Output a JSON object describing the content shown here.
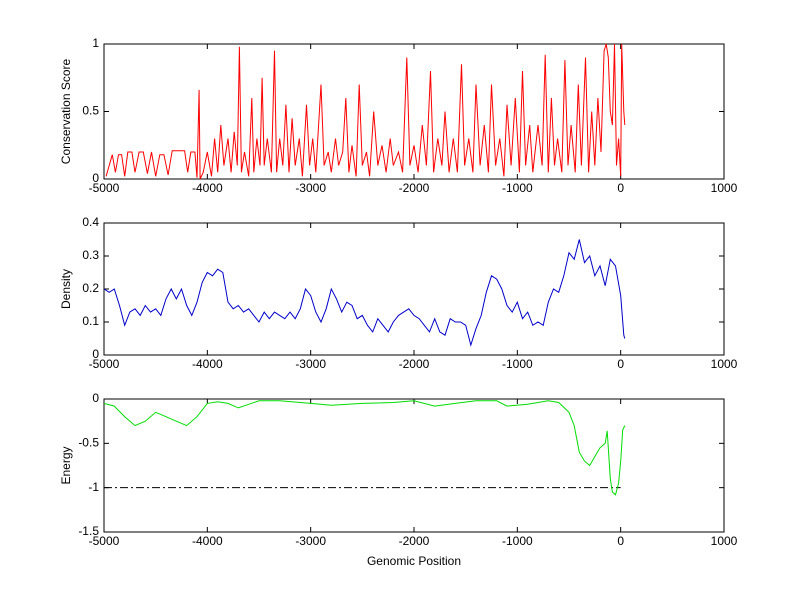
{
  "chart_data": [
    {
      "type": "line",
      "ylabel": "Conservation Score",
      "color": "#ff0000",
      "xlim": [
        -5000,
        1000
      ],
      "xticks": [
        -5000,
        -4000,
        -3000,
        -2000,
        -1000,
        0,
        1000
      ],
      "ylim": [
        0,
        1
      ],
      "yticks": [
        0,
        0.5,
        1
      ],
      "x": [
        -4980,
        -4950,
        -4920,
        -4890,
        -4860,
        -4830,
        -4800,
        -4770,
        -4730,
        -4700,
        -4660,
        -4620,
        -4580,
        -4540,
        -4500,
        -4460,
        -4420,
        -4380,
        -4340,
        -4300,
        -4260,
        -4220,
        -4190,
        -4160,
        -4120,
        -4100,
        -4080,
        -4070,
        -4040,
        -4000,
        -3960,
        -3930,
        -3900,
        -3870,
        -3840,
        -3800,
        -3770,
        -3740,
        -3710,
        -3690,
        -3670,
        -3640,
        -3600,
        -3570,
        -3550,
        -3520,
        -3490,
        -3470,
        -3450,
        -3420,
        -3380,
        -3350,
        -3330,
        -3300,
        -3270,
        -3240,
        -3210,
        -3180,
        -3150,
        -3110,
        -3080,
        -3040,
        -3010,
        -2980,
        -2950,
        -2900,
        -2870,
        -2830,
        -2800,
        -2760,
        -2730,
        -2690,
        -2660,
        -2630,
        -2600,
        -2560,
        -2530,
        -2500,
        -2460,
        -2430,
        -2390,
        -2350,
        -2310,
        -2270,
        -2230,
        -2200,
        -2150,
        -2110,
        -2070,
        -2040,
        -2000,
        -1960,
        -1920,
        -1880,
        -1840,
        -1810,
        -1770,
        -1730,
        -1700,
        -1660,
        -1620,
        -1580,
        -1540,
        -1510,
        -1470,
        -1430,
        -1400,
        -1360,
        -1320,
        -1280,
        -1250,
        -1210,
        -1170,
        -1130,
        -1100,
        -1060,
        -1020,
        -980,
        -950,
        -920,
        -880,
        -850,
        -800,
        -760,
        -730,
        -700,
        -670,
        -640,
        -610,
        -570,
        -540,
        -510,
        -480,
        -440,
        -410,
        -380,
        -340,
        -310,
        -280,
        -250,
        -220,
        -190,
        -160,
        -140,
        -120,
        -100,
        -80,
        -60,
        -40,
        -20,
        0,
        10,
        30,
        40
      ],
      "values": [
        0.02,
        0.1,
        0.18,
        0.05,
        0.18,
        0.18,
        0.02,
        0.2,
        0.2,
        0.05,
        0.2,
        0.2,
        0.04,
        0.2,
        0.02,
        0.18,
        0.18,
        0.03,
        0.21,
        0.21,
        0.21,
        0.21,
        0.05,
        0.2,
        0.2,
        0.01,
        0.66,
        0,
        0.05,
        0.2,
        0.02,
        0.3,
        0.05,
        0.4,
        0.1,
        0.3,
        0.05,
        0.35,
        0.1,
        0.98,
        0.05,
        0.2,
        0.02,
        0.6,
        0.05,
        0.3,
        0.1,
        0.75,
        0.1,
        0.3,
        0.05,
        0.95,
        0.05,
        0.3,
        0.1,
        0.55,
        0.05,
        0.45,
        0.1,
        0.3,
        0.02,
        0.55,
        0.1,
        0.3,
        0.05,
        0.7,
        0.1,
        0.2,
        0.05,
        0.3,
        0.1,
        0.2,
        0.6,
        0.05,
        0.25,
        0.02,
        0.7,
        0.1,
        0.2,
        0.02,
        0.5,
        0.1,
        0.25,
        0.05,
        0.3,
        0.1,
        0.2,
        0.05,
        0.9,
        0.1,
        0.25,
        0.05,
        0.4,
        0.1,
        0.8,
        0.05,
        0.3,
        0.1,
        0.5,
        0.05,
        0.3,
        0.05,
        0.85,
        0.1,
        0.3,
        0.05,
        0.7,
        0.1,
        0.4,
        0.05,
        0.7,
        0.1,
        0.3,
        0.02,
        0.55,
        0.1,
        0.6,
        0.05,
        0.8,
        0.1,
        0.4,
        0.05,
        0.4,
        0.1,
        0.92,
        0.05,
        0.6,
        0.1,
        0.3,
        0.05,
        0.88,
        0.1,
        0.4,
        0.05,
        0.7,
        0.1,
        0.9,
        0.05,
        0.5,
        0.1,
        0.6,
        0.2,
        0.95,
        1,
        0.9,
        0.5,
        0.4,
        1,
        0.1,
        0.3,
        0.02,
        1,
        0.5,
        0.4
      ]
    },
    {
      "type": "line",
      "ylabel": "Density",
      "color": "#0000cc",
      "xlim": [
        -5000,
        1000
      ],
      "xticks": [
        -5000,
        -4000,
        -3000,
        -2000,
        -1000,
        0,
        1000
      ],
      "ylim": [
        0,
        0.4
      ],
      "yticks": [
        0,
        0.1,
        0.2,
        0.3,
        0.4
      ],
      "x": [
        -5000,
        -4950,
        -4900,
        -4850,
        -4800,
        -4750,
        -4700,
        -4650,
        -4600,
        -4550,
        -4500,
        -4450,
        -4400,
        -4350,
        -4300,
        -4250,
        -4200,
        -4150,
        -4100,
        -4050,
        -4000,
        -3950,
        -3900,
        -3850,
        -3800,
        -3750,
        -3700,
        -3650,
        -3600,
        -3550,
        -3500,
        -3450,
        -3400,
        -3350,
        -3300,
        -3250,
        -3200,
        -3150,
        -3100,
        -3050,
        -3000,
        -2950,
        -2900,
        -2850,
        -2800,
        -2750,
        -2700,
        -2650,
        -2600,
        -2550,
        -2500,
        -2450,
        -2400,
        -2350,
        -2300,
        -2250,
        -2200,
        -2150,
        -2100,
        -2050,
        -2000,
        -1950,
        -1900,
        -1850,
        -1800,
        -1750,
        -1700,
        -1650,
        -1600,
        -1550,
        -1500,
        -1450,
        -1400,
        -1350,
        -1300,
        -1250,
        -1200,
        -1150,
        -1100,
        -1050,
        -1000,
        -950,
        -900,
        -850,
        -800,
        -750,
        -700,
        -650,
        -600,
        -550,
        -500,
        -450,
        -400,
        -350,
        -300,
        -250,
        -200,
        -150,
        -100,
        -50,
        0,
        30,
        40
      ],
      "values": [
        0.2,
        0.19,
        0.2,
        0.15,
        0.09,
        0.13,
        0.14,
        0.12,
        0.15,
        0.13,
        0.14,
        0.12,
        0.17,
        0.2,
        0.17,
        0.2,
        0.15,
        0.12,
        0.16,
        0.22,
        0.25,
        0.24,
        0.26,
        0.25,
        0.16,
        0.14,
        0.15,
        0.13,
        0.14,
        0.12,
        0.1,
        0.13,
        0.11,
        0.13,
        0.12,
        0.11,
        0.13,
        0.11,
        0.14,
        0.2,
        0.18,
        0.13,
        0.1,
        0.14,
        0.2,
        0.17,
        0.13,
        0.16,
        0.15,
        0.11,
        0.12,
        0.09,
        0.07,
        0.11,
        0.09,
        0.07,
        0.1,
        0.12,
        0.13,
        0.14,
        0.12,
        0.11,
        0.09,
        0.07,
        0.11,
        0.07,
        0.06,
        0.11,
        0.1,
        0.1,
        0.09,
        0.03,
        0.08,
        0.12,
        0.19,
        0.24,
        0.23,
        0.2,
        0.15,
        0.13,
        0.16,
        0.11,
        0.13,
        0.09,
        0.1,
        0.09,
        0.16,
        0.2,
        0.19,
        0.24,
        0.31,
        0.29,
        0.35,
        0.28,
        0.3,
        0.24,
        0.27,
        0.21,
        0.29,
        0.27,
        0.18,
        0.06,
        0.05
      ]
    },
    {
      "type": "line",
      "ylabel": "Energy",
      "xlabel": "Genomic Position",
      "color": "#00dd00",
      "xlim": [
        -5000,
        1000
      ],
      "xticks": [
        -5000,
        -4000,
        -3000,
        -2000,
        -1000,
        0,
        1000
      ],
      "ylim": [
        -1.5,
        0
      ],
      "yticks": [
        -1.5,
        -1,
        -0.5,
        0
      ],
      "reference_line": {
        "y": -1,
        "xrange": [
          -5000,
          0
        ],
        "color": "#000000"
      },
      "x": [
        -5000,
        -4900,
        -4800,
        -4700,
        -4600,
        -4500,
        -4400,
        -4300,
        -4200,
        -4100,
        -4000,
        -3900,
        -3800,
        -3700,
        -3600,
        -3500,
        -3300,
        -3000,
        -2800,
        -2500,
        -2200,
        -2000,
        -1800,
        -1600,
        -1400,
        -1200,
        -1100,
        -900,
        -700,
        -600,
        -500,
        -450,
        -400,
        -350,
        -300,
        -250,
        -200,
        -150,
        -130,
        -100,
        -80,
        -50,
        -20,
        0,
        20,
        40
      ],
      "values": [
        -0.05,
        -0.08,
        -0.2,
        -0.3,
        -0.25,
        -0.15,
        -0.2,
        -0.25,
        -0.3,
        -0.2,
        -0.05,
        -0.03,
        -0.05,
        -0.1,
        -0.06,
        -0.02,
        -0.02,
        -0.05,
        -0.07,
        -0.05,
        -0.04,
        -0.02,
        -0.08,
        -0.05,
        -0.02,
        -0.02,
        -0.08,
        -0.06,
        -0.02,
        -0.04,
        -0.15,
        -0.3,
        -0.6,
        -0.7,
        -0.75,
        -0.65,
        -0.55,
        -0.5,
        -0.36,
        -0.9,
        -1.05,
        -1.08,
        -0.95,
        -0.7,
        -0.35,
        -0.3
      ]
    }
  ]
}
